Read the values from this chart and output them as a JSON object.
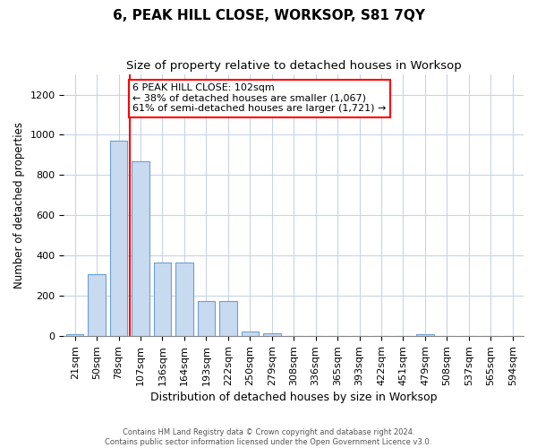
{
  "title": "6, PEAK HILL CLOSE, WORKSOP, S81 7QY",
  "subtitle": "Size of property relative to detached houses in Worksop",
  "xlabel": "Distribution of detached houses by size in Worksop",
  "ylabel": "Number of detached properties",
  "categories": [
    "21sqm",
    "50sqm",
    "78sqm",
    "107sqm",
    "136sqm",
    "164sqm",
    "193sqm",
    "222sqm",
    "250sqm",
    "279sqm",
    "308sqm",
    "336sqm",
    "365sqm",
    "393sqm",
    "422sqm",
    "451sqm",
    "479sqm",
    "508sqm",
    "537sqm",
    "565sqm",
    "594sqm"
  ],
  "values": [
    10,
    310,
    970,
    870,
    365,
    365,
    175,
    175,
    25,
    15,
    0,
    0,
    0,
    0,
    0,
    0,
    10,
    0,
    0,
    0,
    0
  ],
  "bar_color": "#c8daf0",
  "bar_edge_color": "#6b9fd4",
  "vline_x": 2.5,
  "vline_color": "red",
  "annotation_text": "6 PEAK HILL CLOSE: 102sqm\n← 38% of detached houses are smaller (1,067)\n61% of semi-detached houses are larger (1,721) →",
  "annotation_box_color": "white",
  "annotation_box_edge_color": "red",
  "ylim": [
    0,
    1300
  ],
  "yticks": [
    0,
    200,
    400,
    600,
    800,
    1000,
    1200
  ],
  "footer_text": "Contains HM Land Registry data © Crown copyright and database right 2024.\nContains public sector information licensed under the Open Government Licence v3.0.",
  "bg_color": "white",
  "grid_color": "#c8d4e8",
  "title_fontsize": 11,
  "subtitle_fontsize": 9.5,
  "tick_fontsize": 8,
  "ylabel_fontsize": 8.5,
  "xlabel_fontsize": 9,
  "annotation_fontsize": 8,
  "footer_fontsize": 6
}
